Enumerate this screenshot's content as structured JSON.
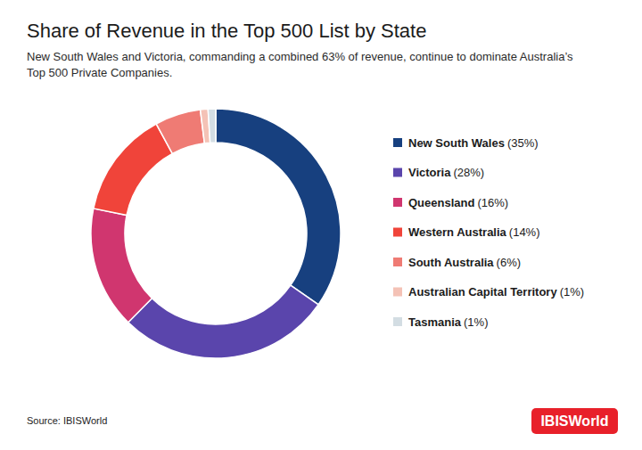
{
  "chart_data": {
    "type": "pie",
    "title": "Share of Revenue in the Top 500 List by State",
    "subtitle": [
      "New South Wales and Victoria, commanding a combined 63% of revenue, continue to dominate Australia’s",
      "Top 500 Private Companies."
    ],
    "categories": [
      "New South Wales",
      "Victoria",
      "Queensland",
      "Western Australia",
      "South Australia",
      "Australian Capital Territory",
      "Tasmania"
    ],
    "values": [
      35,
      28,
      16,
      14,
      6,
      1,
      1
    ],
    "value_labels": [
      "(35%)",
      "(28%)",
      "(16%)",
      "(14%)",
      "(6%)",
      "(1%)",
      "(1%)"
    ],
    "colors": [
      "#17407f",
      "#5a45ac",
      "#d0366f",
      "#f0443a",
      "#ef7b74",
      "#f4c2b6",
      "#d3dde3"
    ],
    "legend": "right",
    "source": "Source: IBISWorld",
    "logo": "IBISWorld"
  }
}
